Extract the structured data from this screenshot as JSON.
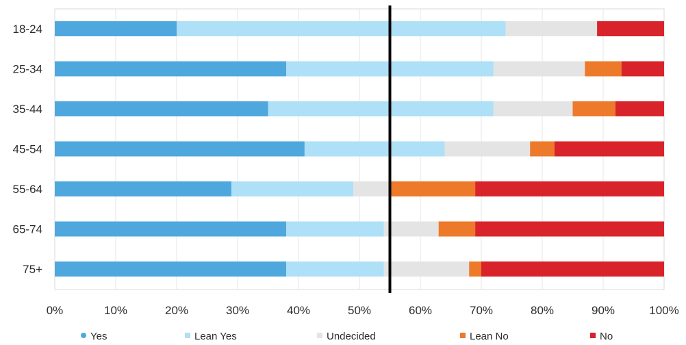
{
  "chart_data": {
    "type": "bar",
    "orientation": "horizontal",
    "stacked": true,
    "title": "",
    "xlabel": "",
    "ylabel": "",
    "xlim": [
      0,
      100
    ],
    "x_ticks": [
      "0%",
      "10%",
      "20%",
      "30%",
      "40%",
      "50%",
      "60%",
      "70%",
      "80%",
      "90%",
      "100%"
    ],
    "categories": [
      "18-24",
      "25-34",
      "35-44",
      "45-54",
      "55-64",
      "65-74",
      "75+"
    ],
    "series": [
      {
        "name": "Yes",
        "color": "#4fa8dd",
        "values": [
          20,
          38,
          35,
          41,
          29,
          38,
          38
        ]
      },
      {
        "name": "Lean Yes",
        "color": "#aee0f7",
        "values": [
          54,
          34,
          37,
          23,
          20,
          16,
          16
        ]
      },
      {
        "name": "Undecided",
        "color": "#e3e4e3",
        "values": [
          15,
          15,
          13,
          14,
          6,
          9,
          14
        ]
      },
      {
        "name": "Lean No",
        "color": "#ec7a2a",
        "values": [
          0,
          6,
          7,
          4,
          14,
          6,
          2
        ]
      },
      {
        "name": "No",
        "color": "#d9232a",
        "values": [
          11,
          7,
          8,
          18,
          31,
          31,
          30
        ]
      }
    ],
    "reference_line": {
      "value": 55,
      "color": "#000000"
    },
    "grid": true,
    "legend_position": "bottom"
  }
}
